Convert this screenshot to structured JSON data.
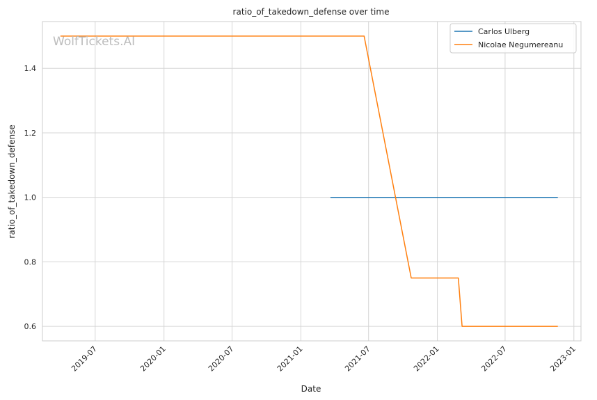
{
  "watermark": "WolfTickets.AI",
  "chart_data": {
    "type": "line",
    "title": "ratio_of_takedown_defense over time",
    "xlabel": "Date",
    "ylabel": "ratio_of_takedown_defense",
    "x_ticks": [
      "2019-07",
      "2020-01",
      "2020-07",
      "2021-01",
      "2021-07",
      "2022-01",
      "2022-07",
      "2023-01"
    ],
    "y_ticks": [
      0.6,
      0.8,
      1.0,
      1.2,
      1.4
    ],
    "xlim": [
      "2019-02-10",
      "2023-01-20"
    ],
    "ylim": [
      0.555,
      1.545
    ],
    "grid": true,
    "legend_position": "top-right",
    "series": [
      {
        "name": "Carlos Ulberg",
        "color": "#1f77b4",
        "points": [
          {
            "x": "2021-03-21",
            "y": 1.0
          },
          {
            "x": "2022-11-19",
            "y": 1.0
          }
        ]
      },
      {
        "name": "Nicolae Negumereanu",
        "color": "#ff7f0e",
        "points": [
          {
            "x": "2019-03-30",
            "y": 1.5
          },
          {
            "x": "2021-06-19",
            "y": 1.5
          },
          {
            "x": "2021-10-23",
            "y": 0.75
          },
          {
            "x": "2022-02-26",
            "y": 0.75
          },
          {
            "x": "2022-03-08",
            "y": 0.6
          },
          {
            "x": "2022-11-19",
            "y": 0.6
          }
        ]
      }
    ]
  }
}
